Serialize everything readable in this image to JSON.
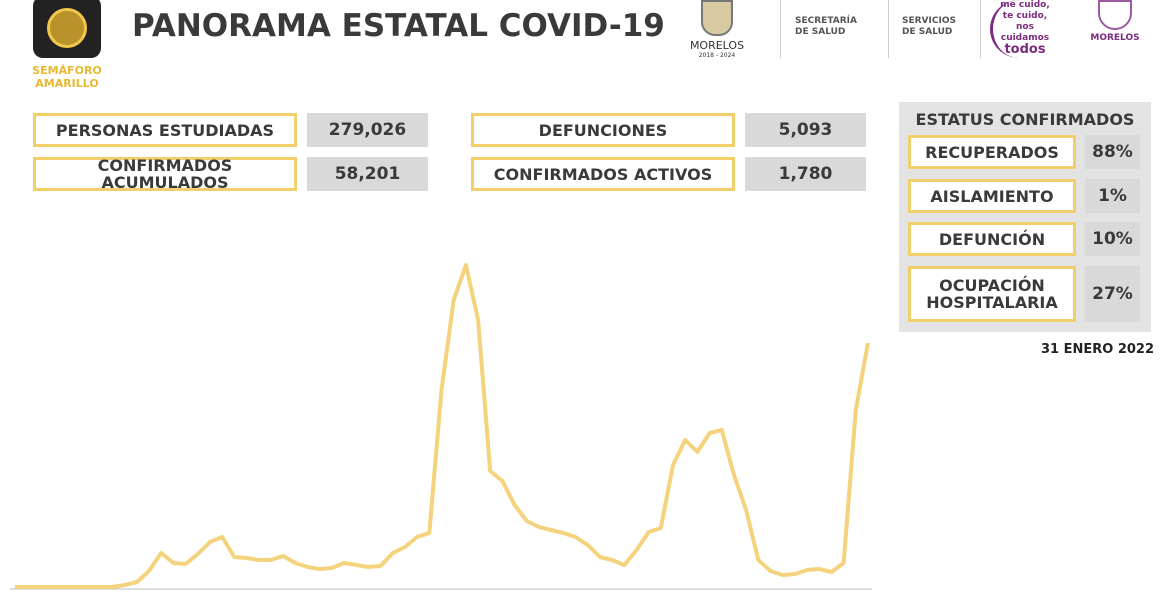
{
  "header": {
    "title": "PANORAMA ESTATAL COVID-19",
    "semaforo": [
      "SEMÁFORO",
      "AMARILLO"
    ],
    "logos": {
      "morelos": "MORELOS",
      "period": "2018 - 2024",
      "secretaria": [
        "SECRETARÍA",
        "DE SALUD"
      ],
      "servicios": [
        "SERVICIOS",
        "DE SALUD"
      ],
      "slogan": [
        "me cuido,",
        "te cuido,",
        "nos cuidamos",
        "todos"
      ],
      "morelos2": "MORELOS"
    }
  },
  "stats": [
    {
      "label": "PERSONAS ESTUDIADAS",
      "value": "279,026"
    },
    {
      "label": "CONFIRMADOS ACUMULADOS",
      "value": "58,201"
    },
    {
      "label": "DEFUNCIONES",
      "value": "5,093"
    },
    {
      "label": "CONFIRMADOS ACTIVOS",
      "value": "1,780"
    }
  ],
  "status": {
    "title": "ESTATUS CONFIRMADOS",
    "rows": [
      {
        "label": "RECUPERADOS",
        "value": "88%"
      },
      {
        "label": "AISLAMIENTO",
        "value": "1%"
      },
      {
        "label": "DEFUNCIÓN",
        "value": "10%"
      },
      {
        "label": "OCUPACIÓN HOSPITALARIA",
        "value": "27%"
      }
    ]
  },
  "date": "31 ENERO 2022",
  "chart_data": {
    "type": "line",
    "color": "#f5d27c",
    "ylim": [
      0,
      340
    ],
    "values": [
      1,
      1,
      1,
      1,
      1,
      1,
      1,
      1,
      1,
      3,
      6,
      17,
      35,
      25,
      24,
      34,
      46,
      51,
      31,
      30,
      28,
      28,
      32,
      25,
      21,
      19,
      20,
      25,
      23,
      21,
      22,
      35,
      41,
      51,
      55,
      198,
      288,
      323,
      268,
      117,
      107,
      83,
      67,
      61,
      58,
      55,
      51,
      43,
      31,
      28,
      23,
      38,
      56,
      60,
      123,
      148,
      136,
      155,
      158,
      113,
      78,
      28,
      17,
      13,
      14,
      18,
      19,
      16,
      25,
      178,
      245
    ]
  }
}
